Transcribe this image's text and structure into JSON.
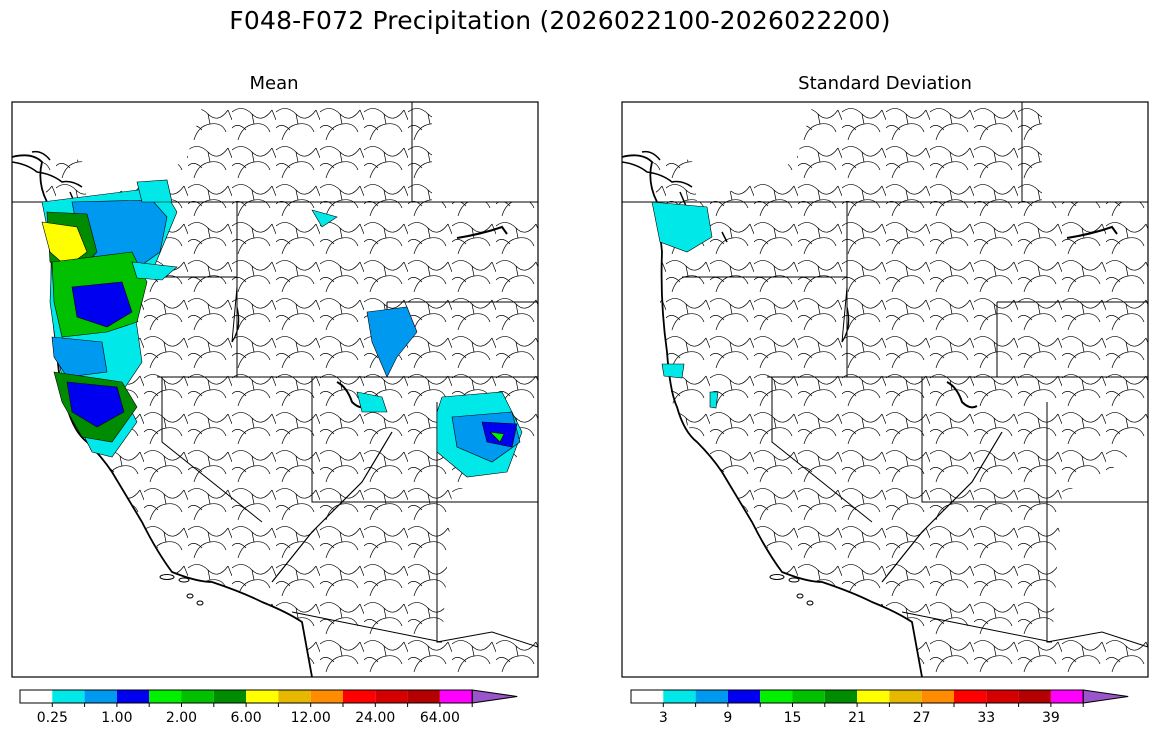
{
  "figure": {
    "title": "F048-F072 Precipitation (2026022100-2026022200)"
  },
  "panels": [
    {
      "title": "Mean",
      "colorbar": {
        "colors": [
          "#ffffff",
          "#00e8e8",
          "#0099f0",
          "#0000f0",
          "#00f000",
          "#00c000",
          "#008c00",
          "#ffff00",
          "#e6b800",
          "#ff8c00",
          "#ff0000",
          "#d40000",
          "#b40000",
          "#ff00ff",
          "#9955c9"
        ],
        "tick_labels": [
          "0.25",
          "1.00",
          "2.00",
          "6.00",
          "12.00",
          "24.00",
          "64.00"
        ],
        "extend": "max"
      }
    },
    {
      "title": "Standard Deviation",
      "colorbar": {
        "colors": [
          "#ffffff",
          "#00e8e8",
          "#0099f0",
          "#0000f0",
          "#00f000",
          "#00c000",
          "#008c00",
          "#ffff00",
          "#e6b800",
          "#ff8c00",
          "#ff0000",
          "#d40000",
          "#b40000",
          "#ff00ff",
          "#9955c9"
        ],
        "tick_labels": [
          "3",
          "9",
          "15",
          "21",
          "27",
          "33",
          "39"
        ],
        "extend": "max"
      }
    }
  ]
}
